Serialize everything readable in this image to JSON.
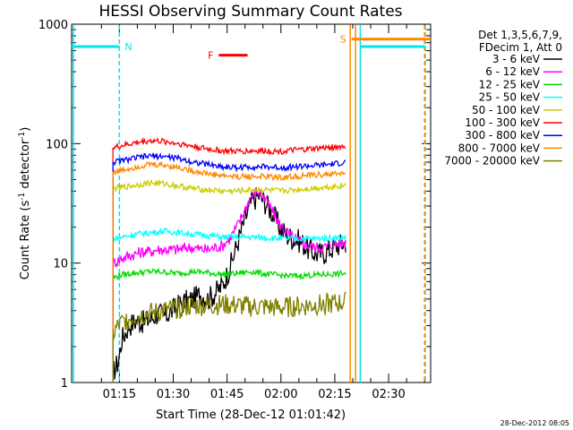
{
  "chart_data": {
    "type": "line",
    "title": "HESSI Observing Summary Count Rates",
    "xlabel": "Start Time (28-Dec-12 01:01:42)",
    "ylabel_main": "Count Rate (s",
    "ylabel_sup1": "-1",
    "ylabel_mid": " detector",
    "ylabel_sup2": "-1",
    "ylabel_end": ")",
    "y_scale": "log",
    "ylim": [
      1,
      1000
    ],
    "xlim": [
      "01:01:42",
      "02:41:42"
    ],
    "x_minute_range": [
      0,
      100
    ],
    "x_ticks": [
      {
        "label": "01:15",
        "minute": 13.3
      },
      {
        "label": "01:30",
        "minute": 28.3
      },
      {
        "label": "01:45",
        "minute": 43.3
      },
      {
        "label": "02:00",
        "minute": 58.3
      },
      {
        "label": "02:15",
        "minute": 73.3
      },
      {
        "label": "02:30",
        "minute": 88.3
      }
    ],
    "y_ticks": [
      {
        "label": "1",
        "value": 1
      },
      {
        "label": "10",
        "value": 10
      },
      {
        "label": "100",
        "value": 100
      },
      {
        "label": "1000",
        "value": 1000
      }
    ],
    "legend_header": [
      "Det 1,3,5,6,7,9,",
      "FDecim 1, Att 0"
    ],
    "legend_placement": "right",
    "data_start_minute": 11.5,
    "data_end_minute": 76.5,
    "series": [
      {
        "name": "3 - 6 keV",
        "color": "#000000",
        "x": [
          11.5,
          13,
          14,
          16,
          18,
          20,
          22,
          24,
          26,
          28,
          30,
          32,
          34,
          36,
          38,
          40,
          42,
          44,
          46,
          48,
          50,
          52,
          54,
          56,
          58,
          60,
          62,
          64,
          66,
          68,
          70,
          72,
          74,
          76.5
        ],
        "y": [
          1.2,
          1.5,
          2.3,
          3.0,
          3.3,
          3.2,
          3.4,
          3.8,
          3.6,
          4.0,
          4.5,
          4.8,
          5.0,
          5.5,
          5.0,
          5.6,
          6.5,
          9,
          14,
          22,
          32,
          37,
          32,
          26,
          20,
          17,
          16,
          15,
          13,
          12,
          12,
          13,
          14,
          15
        ]
      },
      {
        "name": "6 - 12 keV",
        "color": "#ff00ff",
        "x": [
          11.5,
          13,
          14,
          16,
          18,
          20,
          22,
          24,
          26,
          28,
          30,
          32,
          34,
          36,
          38,
          40,
          42,
          44,
          46,
          48,
          50,
          52,
          54,
          56,
          58,
          60,
          62,
          64,
          66,
          68,
          70,
          72,
          74,
          76.5
        ],
        "y": [
          10,
          10.5,
          11,
          11.5,
          12,
          12.5,
          12.5,
          13,
          13,
          13,
          13,
          13.5,
          13.5,
          13,
          13,
          13.5,
          14,
          16,
          20,
          27,
          36,
          40,
          34,
          27,
          21,
          18,
          16,
          15,
          14,
          13.5,
          13.5,
          14,
          14.5,
          15
        ]
      },
      {
        "name": "12 - 25 keV",
        "color": "#00dd00",
        "x": [
          11.5,
          14,
          18,
          22,
          26,
          30,
          34,
          38,
          42,
          46,
          50,
          54,
          58,
          62,
          66,
          70,
          74,
          76.5
        ],
        "y": [
          7.5,
          8,
          8.3,
          8.5,
          8.4,
          8.2,
          8.5,
          8.3,
          8.0,
          8.2,
          8.5,
          8.1,
          7.9,
          7.8,
          7.9,
          8.0,
          8.1,
          8.2
        ]
      },
      {
        "name": "25 - 50 keV",
        "color": "#00ffff",
        "x": [
          11.5,
          14,
          18,
          22,
          26,
          30,
          34,
          38,
          42,
          46,
          50,
          54,
          58,
          62,
          66,
          70,
          74,
          76.5
        ],
        "y": [
          16,
          16.5,
          17.5,
          18,
          18.5,
          18,
          17.5,
          17,
          16.5,
          16.5,
          16.5,
          16.3,
          16,
          16,
          16,
          16.2,
          16.3,
          16.5
        ]
      },
      {
        "name": "50 - 100 keV",
        "color": "#cccc00",
        "x": [
          11.5,
          14,
          18,
          22,
          26,
          30,
          34,
          38,
          42,
          46,
          50,
          54,
          58,
          62,
          66,
          70,
          74,
          76.5
        ],
        "y": [
          42,
          43,
          45,
          47,
          46,
          44,
          42,
          41,
          40,
          40,
          41,
          41,
          40,
          41,
          42,
          43,
          44,
          45
        ]
      },
      {
        "name": "100 - 300 keV",
        "color": "#ff0000",
        "x": [
          11.5,
          14,
          18,
          22,
          26,
          30,
          34,
          38,
          42,
          46,
          50,
          54,
          58,
          62,
          66,
          70,
          74,
          76.5
        ],
        "y": [
          92,
          96,
          102,
          106,
          104,
          100,
          95,
          90,
          87,
          86,
          87,
          87,
          86,
          88,
          90,
          92,
          94,
          95
        ]
      },
      {
        "name": "300 - 800 keV",
        "color": "#0000ff",
        "x": [
          11.5,
          14,
          18,
          22,
          26,
          30,
          34,
          38,
          42,
          46,
          50,
          54,
          58,
          62,
          66,
          70,
          74,
          76.5
        ],
        "y": [
          70,
          72,
          76,
          79,
          78,
          75,
          70,
          67,
          64,
          63,
          64,
          64,
          63,
          64,
          65,
          66,
          68,
          70
        ]
      },
      {
        "name": "800 - 7000 keV",
        "color": "#ff8800",
        "x": [
          11.5,
          14,
          18,
          22,
          26,
          30,
          34,
          38,
          42,
          46,
          50,
          54,
          58,
          62,
          66,
          70,
          74,
          76.5
        ],
        "y": [
          58,
          60,
          64,
          67,
          66,
          63,
          59,
          56,
          54,
          53,
          53,
          53,
          52,
          53,
          54,
          55,
          56,
          57
        ]
      },
      {
        "name": "7000 - 20000 keV",
        "color": "#808000",
        "x": [
          11.5,
          13,
          15,
          18,
          22,
          26,
          30,
          34,
          38,
          42,
          46,
          50,
          54,
          58,
          62,
          66,
          70,
          74,
          76.5
        ],
        "y": [
          2.5,
          3,
          3.3,
          3.6,
          3.8,
          4.0,
          4.2,
          4.4,
          4.4,
          4.5,
          4.4,
          4.3,
          4.3,
          4.2,
          4.3,
          4.4,
          4.5,
          4.6,
          4.7
        ]
      }
    ],
    "annotations": [
      {
        "label": "N",
        "color": "#00e5ee",
        "start_minute": 0,
        "end_minute": 13.3,
        "level": 650
      },
      {
        "label": "F",
        "color": "#ff0000",
        "start_minute": 41,
        "end_minute": 49,
        "level": 550
      },
      {
        "label": "S",
        "color": "#ff8800",
        "start_minute": 78,
        "end_minute": 100,
        "level": 750
      },
      {
        "label": "",
        "color": "#00e5ee",
        "start_minute": 80.5,
        "end_minute": 98.5,
        "level": 650
      }
    ],
    "eclipse_markers": [
      {
        "color": "#00e5ee",
        "minute": 0.5,
        "style": "solid"
      },
      {
        "color": "#00e5ee",
        "minute": 13.3,
        "style": "dashed"
      },
      {
        "color": "#ff8800",
        "minute": 77.6,
        "style": "solid"
      },
      {
        "color": "#ff8800",
        "minute": 79.1,
        "style": "solid"
      },
      {
        "color": "#00e5ee",
        "minute": 80.4,
        "style": "solid"
      },
      {
        "color": "#00e5ee",
        "minute": 98.5,
        "style": "dashed"
      },
      {
        "color": "#ff8800",
        "minute": 98.3,
        "style": "dashed"
      }
    ]
  },
  "footer": {
    "timestamp": "28-Dec-2012 08:05"
  }
}
